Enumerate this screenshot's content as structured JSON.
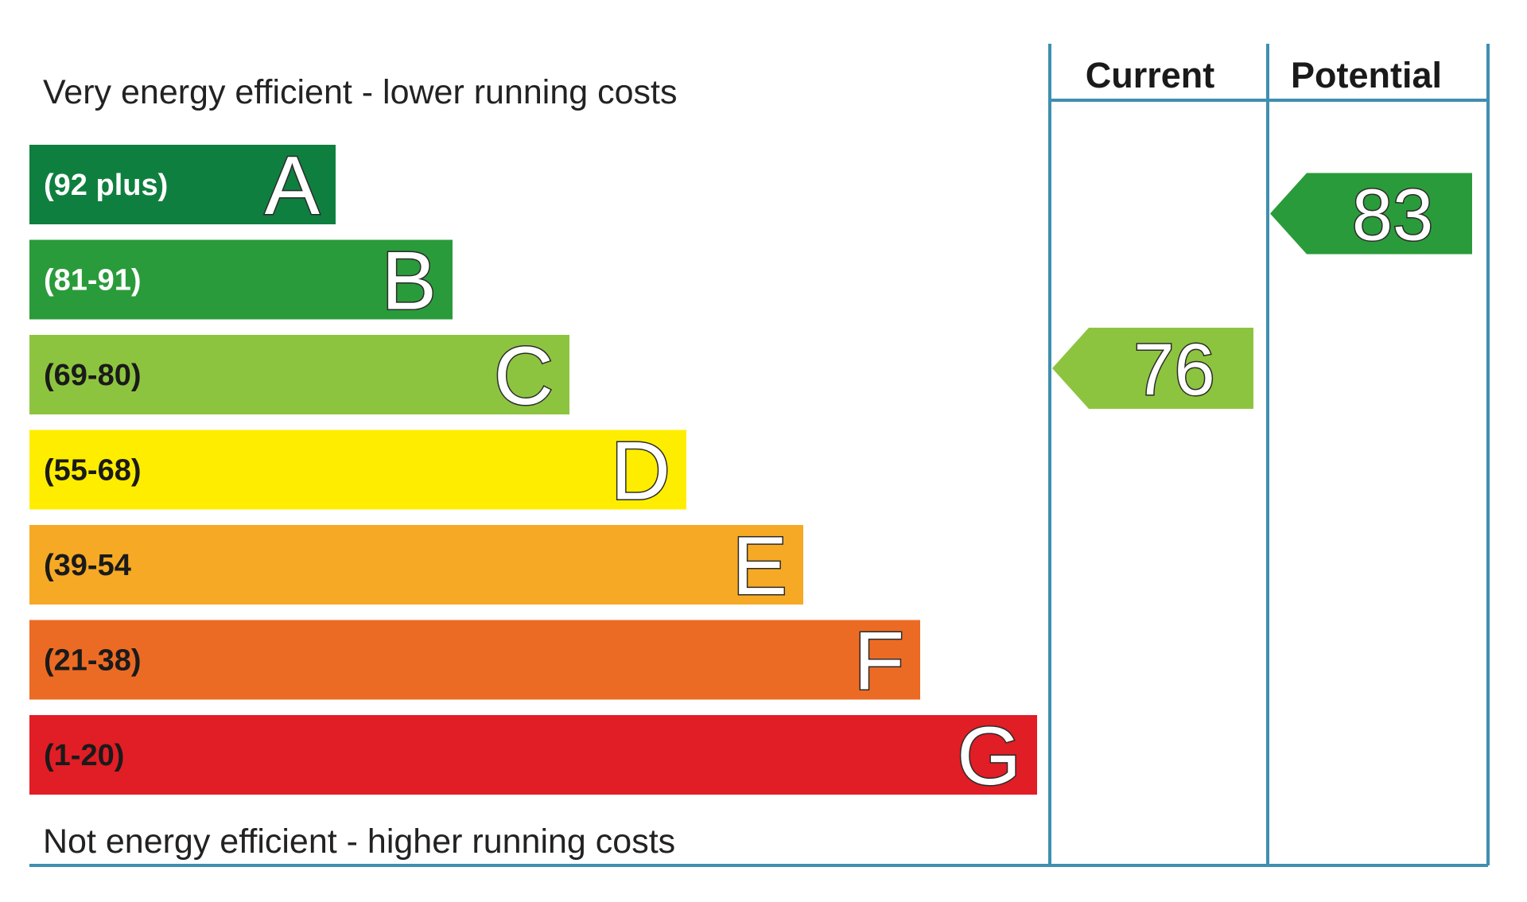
{
  "chart_data": {
    "type": "bar",
    "top_caption": "Very energy efficient - lower running costs",
    "bottom_caption": "Not energy efficient - higher running costs",
    "bands": [
      {
        "letter": "A",
        "range": "(92 plus)",
        "color": "#0f7f3f",
        "text_color": "#ffffff"
      },
      {
        "letter": "B",
        "range": "(81-91)",
        "color": "#2a9b3a",
        "text_color": "#ffffff"
      },
      {
        "letter": "C",
        "range": "(69-80)",
        "color": "#8dc43f",
        "text_color": "#1a1a1a"
      },
      {
        "letter": "D",
        "range": "(55-68)",
        "color": "#ffed00",
        "text_color": "#1a1a1a"
      },
      {
        "letter": "E",
        "range": "(39-54",
        "color": "#f6a924",
        "text_color": "#1a1a1a"
      },
      {
        "letter": "F",
        "range": "(21-38)",
        "color": "#ec6b24",
        "text_color": "#1a1a1a"
      },
      {
        "letter": "G",
        "range": "(1-20)",
        "color": "#e11d25",
        "text_color": "#1a1a1a"
      }
    ],
    "columns": [
      {
        "name": "Current",
        "value": 76,
        "band": "C",
        "color": "#8dc43f"
      },
      {
        "name": "Potential",
        "value": 83,
        "band": "B",
        "color": "#2a9b3a"
      }
    ],
    "frame_color": "#3f8fb0"
  }
}
